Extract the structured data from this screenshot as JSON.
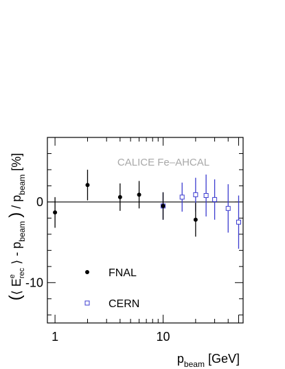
{
  "chart_data": {
    "type": "scatter",
    "annotation": "CALICE Fe–AHCAL",
    "xlabel": {
      "main": "p",
      "sub": "beam",
      "unit": "[GeV]"
    },
    "ylabel": {
      "paren_open": "(",
      "angle_open": "⟨",
      "E": "E",
      "E_sup": "e",
      "E_sub": "rec",
      "angle_close": "⟩",
      "minus": " - p",
      "p_sub": "beam",
      "paren_close": ")",
      "slash": " / p",
      "p2_sub": "beam",
      "unit": "[%]"
    },
    "x_scale": "log",
    "xlim": [
      0.85,
      55
    ],
    "ylim": [
      -15,
      8
    ],
    "x_ticks": [
      {
        "value": 1,
        "label": "1"
      },
      {
        "value": 10,
        "label": "10"
      }
    ],
    "y_ticks": [
      {
        "value": 0,
        "label": "0"
      },
      {
        "value": -10,
        "label": "-10"
      }
    ],
    "reference_line": 0,
    "series": [
      {
        "name": "FNAL",
        "marker": "filled-circle",
        "color": "#000000",
        "points": [
          {
            "x": 1,
            "y": -1.3,
            "err": 1.9
          },
          {
            "x": 2,
            "y": 2.1,
            "err": 1.9
          },
          {
            "x": 4,
            "y": 0.6,
            "err": 1.7
          },
          {
            "x": 6,
            "y": 0.9,
            "err": 1.7
          },
          {
            "x": 10,
            "y": -0.5,
            "err": 1.7
          },
          {
            "x": 20,
            "y": -2.2,
            "err": 2.1
          }
        ]
      },
      {
        "name": "CERN",
        "marker": "open-square",
        "color": "#3a3acf",
        "points": [
          {
            "x": 10,
            "y": -0.5,
            "err": 1.7
          },
          {
            "x": 15,
            "y": 0.6,
            "err": 1.8
          },
          {
            "x": 20,
            "y": 0.9,
            "err": 2.1
          },
          {
            "x": 25,
            "y": 0.8,
            "err": 2.6
          },
          {
            "x": 30,
            "y": 0.3,
            "err": 2.5
          },
          {
            "x": 40,
            "y": -0.8,
            "err": 3.0
          },
          {
            "x": 50,
            "y": -2.5,
            "err": 3.3
          }
        ]
      }
    ],
    "legend_position": "bottom-left",
    "grid": false
  }
}
